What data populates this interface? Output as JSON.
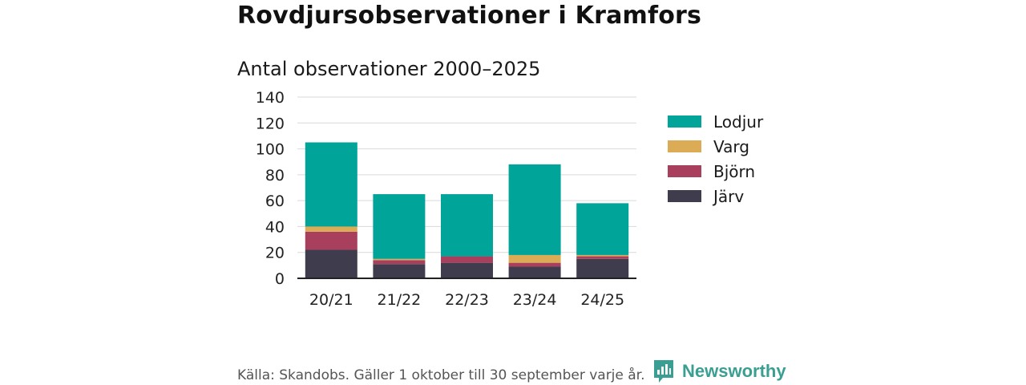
{
  "title": "Rovdjursobservationer i Kramfors",
  "chart_data": {
    "type": "bar",
    "stacked": true,
    "subtitle": "Antal observationer 2000–2025",
    "categories": [
      "20/21",
      "21/22",
      "22/23",
      "23/24",
      "24/25"
    ],
    "ylim": [
      0,
      140
    ],
    "yticks": [
      0,
      20,
      40,
      60,
      80,
      100,
      120,
      140
    ],
    "grid": true,
    "legend_position": "right",
    "series": [
      {
        "name": "Järv",
        "color": "#3f3d4d",
        "values": [
          22,
          11,
          12,
          9,
          15
        ]
      },
      {
        "name": "Björn",
        "color": "#a8405d",
        "values": [
          14,
          3,
          5,
          3,
          2
        ]
      },
      {
        "name": "Varg",
        "color": "#dcab55",
        "values": [
          4,
          1,
          0,
          6,
          1
        ]
      },
      {
        "name": "Lodjur",
        "color": "#00a499",
        "values": [
          65,
          50,
          48,
          70,
          40
        ]
      }
    ]
  },
  "footer": {
    "source": "Källa: Skandobs. Gäller 1 oktober till 30 september varje år.",
    "brand": "Newsworthy",
    "brand_icon": "newsworthy-logo-icon",
    "brand_color": "#3b9e92"
  }
}
